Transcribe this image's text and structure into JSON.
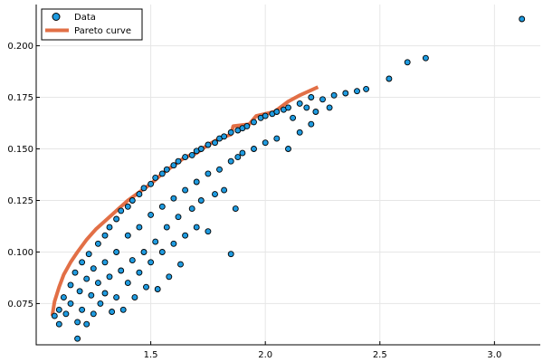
{
  "chart_data": {
    "type": "scatter",
    "title": "",
    "xlabel": "",
    "ylabel": "",
    "xlim": [
      1.0,
      3.2
    ],
    "ylim": [
      0.055,
      0.22
    ],
    "x_ticks": [
      {
        "value": 1.5,
        "label": "1.5"
      },
      {
        "value": 2.0,
        "label": "2.0"
      },
      {
        "value": 2.5,
        "label": "2.5"
      },
      {
        "value": 3.0,
        "label": "3.0"
      }
    ],
    "y_ticks": [
      {
        "value": 0.075,
        "label": "0.075"
      },
      {
        "value": 0.1,
        "label": "0.100"
      },
      {
        "value": 0.125,
        "label": "0.125"
      },
      {
        "value": 0.15,
        "label": "0.150"
      },
      {
        "value": 0.175,
        "label": "0.175"
      },
      {
        "value": 0.2,
        "label": "0.200"
      }
    ],
    "grid": true,
    "legend_position": "top-left",
    "series": [
      {
        "name": "Data",
        "kind": "scatter",
        "color": "#1f9be0",
        "edge_color": "#000000",
        "points": [
          [
            1.08,
            0.069
          ],
          [
            1.1,
            0.072
          ],
          [
            1.1,
            0.065
          ],
          [
            1.12,
            0.078
          ],
          [
            1.13,
            0.07
          ],
          [
            1.15,
            0.084
          ],
          [
            1.15,
            0.075
          ],
          [
            1.17,
            0.09
          ],
          [
            1.18,
            0.058
          ],
          [
            1.18,
            0.066
          ],
          [
            1.19,
            0.081
          ],
          [
            1.2,
            0.095
          ],
          [
            1.2,
            0.072
          ],
          [
            1.22,
            0.087
          ],
          [
            1.22,
            0.065
          ],
          [
            1.23,
            0.099
          ],
          [
            1.24,
            0.079
          ],
          [
            1.25,
            0.092
          ],
          [
            1.25,
            0.07
          ],
          [
            1.27,
            0.104
          ],
          [
            1.27,
            0.085
          ],
          [
            1.28,
            0.075
          ],
          [
            1.3,
            0.108
          ],
          [
            1.3,
            0.095
          ],
          [
            1.3,
            0.08
          ],
          [
            1.32,
            0.112
          ],
          [
            1.32,
            0.088
          ],
          [
            1.33,
            0.071
          ],
          [
            1.35,
            0.116
          ],
          [
            1.35,
            0.1
          ],
          [
            1.35,
            0.078
          ],
          [
            1.37,
            0.12
          ],
          [
            1.37,
            0.091
          ],
          [
            1.38,
            0.072
          ],
          [
            1.4,
            0.122
          ],
          [
            1.4,
            0.108
          ],
          [
            1.4,
            0.085
          ],
          [
            1.42,
            0.125
          ],
          [
            1.42,
            0.096
          ],
          [
            1.43,
            0.078
          ],
          [
            1.45,
            0.128
          ],
          [
            1.45,
            0.112
          ],
          [
            1.45,
            0.09
          ],
          [
            1.47,
            0.131
          ],
          [
            1.47,
            0.1
          ],
          [
            1.48,
            0.083
          ],
          [
            1.5,
            0.133
          ],
          [
            1.5,
            0.118
          ],
          [
            1.5,
            0.095
          ],
          [
            1.52,
            0.136
          ],
          [
            1.52,
            0.105
          ],
          [
            1.53,
            0.082
          ],
          [
            1.55,
            0.138
          ],
          [
            1.55,
            0.122
          ],
          [
            1.55,
            0.1
          ],
          [
            1.57,
            0.14
          ],
          [
            1.57,
            0.112
          ],
          [
            1.58,
            0.088
          ],
          [
            1.6,
            0.142
          ],
          [
            1.6,
            0.126
          ],
          [
            1.6,
            0.104
          ],
          [
            1.62,
            0.144
          ],
          [
            1.62,
            0.117
          ],
          [
            1.63,
            0.094
          ],
          [
            1.65,
            0.146
          ],
          [
            1.65,
            0.13
          ],
          [
            1.65,
            0.108
          ],
          [
            1.68,
            0.147
          ],
          [
            1.68,
            0.121
          ],
          [
            1.7,
            0.149
          ],
          [
            1.7,
            0.134
          ],
          [
            1.7,
            0.112
          ],
          [
            1.72,
            0.15
          ],
          [
            1.72,
            0.125
          ],
          [
            1.75,
            0.152
          ],
          [
            1.75,
            0.138
          ],
          [
            1.75,
            0.11
          ],
          [
            1.78,
            0.153
          ],
          [
            1.78,
            0.128
          ],
          [
            1.8,
            0.155
          ],
          [
            1.8,
            0.14
          ],
          [
            1.82,
            0.156
          ],
          [
            1.82,
            0.13
          ],
          [
            1.85,
            0.158
          ],
          [
            1.85,
            0.144
          ],
          [
            1.85,
            0.099
          ],
          [
            1.87,
            0.121
          ],
          [
            1.88,
            0.159
          ],
          [
            1.88,
            0.146
          ],
          [
            1.9,
            0.16
          ],
          [
            1.9,
            0.148
          ],
          [
            1.92,
            0.161
          ],
          [
            1.95,
            0.163
          ],
          [
            1.95,
            0.15
          ],
          [
            1.98,
            0.165
          ],
          [
            2.0,
            0.166
          ],
          [
            2.0,
            0.153
          ],
          [
            2.03,
            0.167
          ],
          [
            2.05,
            0.168
          ],
          [
            2.05,
            0.155
          ],
          [
            2.08,
            0.169
          ],
          [
            2.1,
            0.17
          ],
          [
            2.1,
            0.15
          ],
          [
            2.12,
            0.165
          ],
          [
            2.15,
            0.172
          ],
          [
            2.15,
            0.158
          ],
          [
            2.18,
            0.17
          ],
          [
            2.2,
            0.175
          ],
          [
            2.2,
            0.162
          ],
          [
            2.22,
            0.168
          ],
          [
            2.25,
            0.174
          ],
          [
            2.28,
            0.17
          ],
          [
            2.3,
            0.176
          ],
          [
            2.35,
            0.177
          ],
          [
            2.4,
            0.178
          ],
          [
            2.44,
            0.179
          ],
          [
            2.54,
            0.184
          ],
          [
            2.62,
            0.192
          ],
          [
            2.7,
            0.194
          ],
          [
            3.12,
            0.213
          ]
        ]
      },
      {
        "name": "Pareto curve",
        "kind": "line",
        "color": "#e26f46",
        "points": [
          [
            1.07,
            0.069
          ],
          [
            1.08,
            0.076
          ],
          [
            1.1,
            0.083
          ],
          [
            1.12,
            0.089
          ],
          [
            1.15,
            0.095
          ],
          [
            1.18,
            0.1
          ],
          [
            1.22,
            0.106
          ],
          [
            1.26,
            0.111
          ],
          [
            1.3,
            0.115
          ],
          [
            1.35,
            0.12
          ],
          [
            1.4,
            0.125
          ],
          [
            1.45,
            0.129
          ],
          [
            1.5,
            0.133
          ],
          [
            1.55,
            0.138
          ],
          [
            1.6,
            0.142
          ],
          [
            1.65,
            0.146
          ],
          [
            1.7,
            0.148
          ],
          [
            1.75,
            0.152
          ],
          [
            1.8,
            0.155
          ],
          [
            1.85,
            0.157
          ],
          [
            1.86,
            0.161
          ],
          [
            1.93,
            0.162
          ],
          [
            1.96,
            0.166
          ],
          [
            2.04,
            0.168
          ],
          [
            2.1,
            0.173
          ],
          [
            2.15,
            0.176
          ],
          [
            2.23,
            0.18
          ]
        ]
      }
    ]
  }
}
